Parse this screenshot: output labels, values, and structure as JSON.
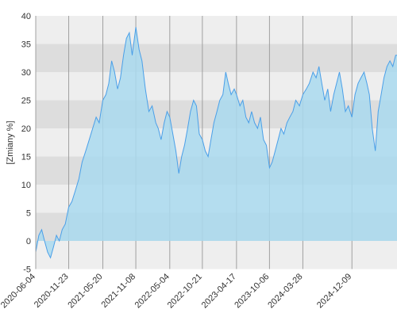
{
  "chart_data": {
    "type": "area",
    "title": "",
    "xlabel": "",
    "ylabel": "[Zmiany %]",
    "ylim": [
      -5,
      40
    ],
    "yticks": [
      -5,
      0,
      5,
      10,
      15,
      20,
      25,
      30,
      35,
      40
    ],
    "xlim": [
      "2020-06-04",
      "2025-08-01"
    ],
    "xticks": [
      "2020-06-04",
      "2020-11-23",
      "2021-05-20",
      "2021-11-08",
      "2022-05-04",
      "2022-10-21",
      "2023-04-17",
      "2023-10-06",
      "2024-03-28",
      "2024-12-09"
    ],
    "grid": true,
    "legend": "none",
    "colors": {
      "line": "#4a9fe8",
      "fill": "#a9d9ef",
      "band_light": "#eeeeee",
      "band_dark": "#dddddd",
      "grid": "#a0a0a0"
    },
    "series": [
      {
        "x": [
          "2020-06-04",
          "2020-06-20",
          "2020-07-05",
          "2020-07-20",
          "2020-08-05",
          "2020-08-20",
          "2020-09-05",
          "2020-09-20",
          "2020-10-05",
          "2020-10-20",
          "2020-11-05",
          "2020-11-23",
          "2020-12-10",
          "2020-12-28",
          "2021-01-15",
          "2021-02-01",
          "2021-02-20",
          "2021-03-10",
          "2021-03-28",
          "2021-04-15",
          "2021-05-01",
          "2021-05-20",
          "2021-06-05",
          "2021-06-20",
          "2021-07-05",
          "2021-07-20",
          "2021-08-05",
          "2021-08-20",
          "2021-09-05",
          "2021-09-20",
          "2021-10-05",
          "2021-10-20",
          "2021-11-08",
          "2021-11-25",
          "2021-12-10",
          "2021-12-28",
          "2022-01-15",
          "2022-02-01",
          "2022-02-20",
          "2022-03-05",
          "2022-03-20",
          "2022-04-05",
          "2022-04-20",
          "2022-05-04",
          "2022-05-20",
          "2022-06-05",
          "2022-06-20",
          "2022-07-05",
          "2022-07-20",
          "2022-08-05",
          "2022-08-20",
          "2022-09-05",
          "2022-09-20",
          "2022-10-05",
          "2022-10-21",
          "2022-11-05",
          "2022-11-20",
          "2022-12-05",
          "2022-12-20",
          "2023-01-05",
          "2023-01-20",
          "2023-02-05",
          "2023-02-20",
          "2023-03-05",
          "2023-03-20",
          "2023-04-05",
          "2023-04-17",
          "2023-05-05",
          "2023-05-20",
          "2023-06-05",
          "2023-06-20",
          "2023-07-05",
          "2023-07-20",
          "2023-08-05",
          "2023-08-20",
          "2023-09-05",
          "2023-09-20",
          "2023-10-06",
          "2023-10-20",
          "2023-11-05",
          "2023-11-20",
          "2023-12-05",
          "2023-12-20",
          "2024-01-05",
          "2024-01-20",
          "2024-02-05",
          "2024-02-20",
          "2024-03-10",
          "2024-03-28",
          "2024-04-15",
          "2024-05-01",
          "2024-05-20",
          "2024-06-05",
          "2024-06-20",
          "2024-07-05",
          "2024-07-20",
          "2024-08-05",
          "2024-08-20",
          "2024-09-05",
          "2024-09-20",
          "2024-10-05",
          "2024-10-20",
          "2024-11-05",
          "2024-11-20",
          "2024-12-09",
          "2024-12-25",
          "2025-01-10",
          "2025-01-25",
          "2025-02-10",
          "2025-02-25",
          "2025-03-10",
          "2025-03-25",
          "2025-04-10",
          "2025-04-25",
          "2025-05-10",
          "2025-05-25",
          "2025-06-10",
          "2025-06-25",
          "2025-07-10",
          "2025-07-25",
          "2025-08-01"
        ],
        "y": [
          -2,
          1,
          2,
          0,
          -2,
          -3,
          -1,
          1,
          0,
          2,
          3,
          6,
          7,
          9,
          11,
          14,
          16,
          18,
          20,
          22,
          21,
          25,
          26,
          28,
          32,
          30,
          27,
          29,
          33,
          36,
          37,
          33,
          38,
          34,
          32,
          27,
          23,
          24,
          21,
          20,
          18,
          21,
          23,
          22,
          19,
          16,
          12,
          15,
          17,
          20,
          23,
          25,
          24,
          19,
          18,
          16,
          15,
          18,
          21,
          23,
          25,
          26,
          30,
          28,
          26,
          27,
          26,
          24,
          25,
          22,
          21,
          23,
          21,
          20,
          22,
          18,
          17,
          13,
          14,
          16,
          18,
          20,
          19,
          21,
          22,
          23,
          25,
          24,
          26,
          27,
          28,
          30,
          29,
          31,
          28,
          25,
          27,
          23,
          26,
          28,
          30,
          27,
          23,
          24,
          22,
          26,
          28,
          29,
          30,
          28,
          26,
          20,
          16,
          23,
          26,
          29,
          31,
          32,
          31,
          33,
          33
        ]
      }
    ]
  }
}
